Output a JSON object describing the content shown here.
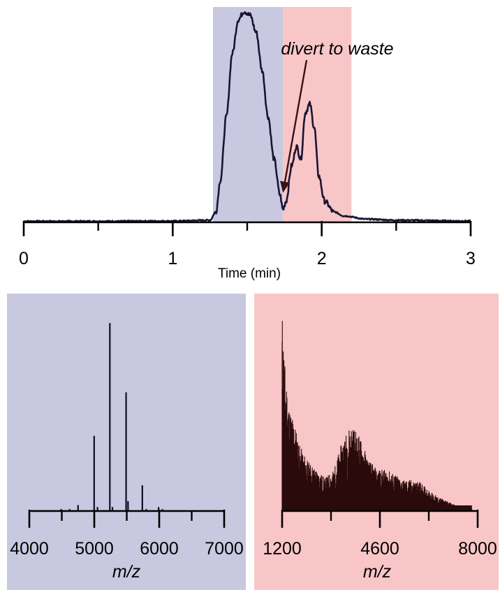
{
  "colors": {
    "blue_region": "#c8c9e1",
    "red_region": "#f8c6c7",
    "chromatogram_line": "#1a1533",
    "blue_spectrum_line": "#0d0d26",
    "red_spectrum_line": "#2a0a0a",
    "arrow": "#3a1016",
    "annotation_text": "#3a1016"
  },
  "chart_data": [
    {
      "type": "line",
      "xlabel": "Time (min)",
      "ylabel": "",
      "xlim": [
        0,
        3
      ],
      "x_ticks": [
        "0",
        "1",
        "2",
        "3"
      ],
      "minor_ticks": [
        0.5,
        1.5,
        2.5
      ],
      "shaded_regions": [
        {
          "x_start": 1.27,
          "x_end": 1.74,
          "color": "blue"
        },
        {
          "x_start": 1.74,
          "x_end": 2.2,
          "color": "red"
        }
      ],
      "annotation": {
        "text": "divert to waste",
        "arrow_to_x": 1.74,
        "arrow_to_y": 0.14
      },
      "series": [
        {
          "x": [
            0,
            0.5,
            1.0,
            1.25,
            1.29,
            1.32,
            1.36,
            1.4,
            1.44,
            1.48,
            1.52,
            1.56,
            1.6,
            1.64,
            1.68,
            1.72,
            1.74,
            1.76,
            1.8,
            1.83,
            1.86,
            1.89,
            1.92,
            1.95,
            1.98,
            2.02,
            2.08,
            2.15,
            2.3,
            2.5,
            3.0
          ],
          "y": [
            0.005,
            0.005,
            0.006,
            0.01,
            0.05,
            0.2,
            0.5,
            0.8,
            0.96,
            1.0,
            0.98,
            0.9,
            0.72,
            0.5,
            0.3,
            0.13,
            0.06,
            0.1,
            0.27,
            0.36,
            0.3,
            0.52,
            0.56,
            0.45,
            0.22,
            0.1,
            0.05,
            0.03,
            0.015,
            0.01,
            0.006
          ]
        }
      ]
    },
    {
      "type": "bar",
      "xlabel": "m/z",
      "xlim": [
        4000,
        7000
      ],
      "x_ticks": [
        "4000",
        "5000",
        "6000",
        "7000"
      ],
      "minor_ticks": [
        4500,
        5500,
        6500
      ],
      "background": "blue",
      "peaks": [
        {
          "x": 4490,
          "y": 0.01
        },
        {
          "x": 4620,
          "y": 0.01
        },
        {
          "x": 4750,
          "y": 0.03
        },
        {
          "x": 4998,
          "y": 0.38
        },
        {
          "x": 5050,
          "y": 0.02
        },
        {
          "x": 5240,
          "y": 0.95
        },
        {
          "x": 5280,
          "y": 0.02
        },
        {
          "x": 5490,
          "y": 0.6
        },
        {
          "x": 5520,
          "y": 0.05
        },
        {
          "x": 5740,
          "y": 0.13
        },
        {
          "x": 5800,
          "y": 0.01
        },
        {
          "x": 5990,
          "y": 0.02
        },
        {
          "x": 6050,
          "y": 0.01
        }
      ]
    },
    {
      "type": "bar",
      "xlabel": "m/z",
      "xlim": [
        1200,
        8000
      ],
      "x_ticks": [
        "1200",
        "4600",
        "8000"
      ],
      "minor_ticks": [
        2900,
        6300
      ],
      "background": "red",
      "profile": {
        "x": [
          1200,
          1300,
          1450,
          1600,
          1800,
          2100,
          2400,
          2700,
          3000,
          3300,
          3600,
          3900,
          4200,
          4500,
          4800,
          5100,
          5400,
          5700,
          6000,
          6300,
          6600,
          6900,
          7200,
          7500,
          7800
        ],
        "y": [
          0.98,
          0.7,
          0.5,
          0.45,
          0.32,
          0.24,
          0.2,
          0.16,
          0.2,
          0.34,
          0.42,
          0.36,
          0.25,
          0.2,
          0.2,
          0.18,
          0.15,
          0.15,
          0.14,
          0.1,
          0.07,
          0.05,
          0.03,
          0.02,
          0.01
        ]
      }
    }
  ]
}
